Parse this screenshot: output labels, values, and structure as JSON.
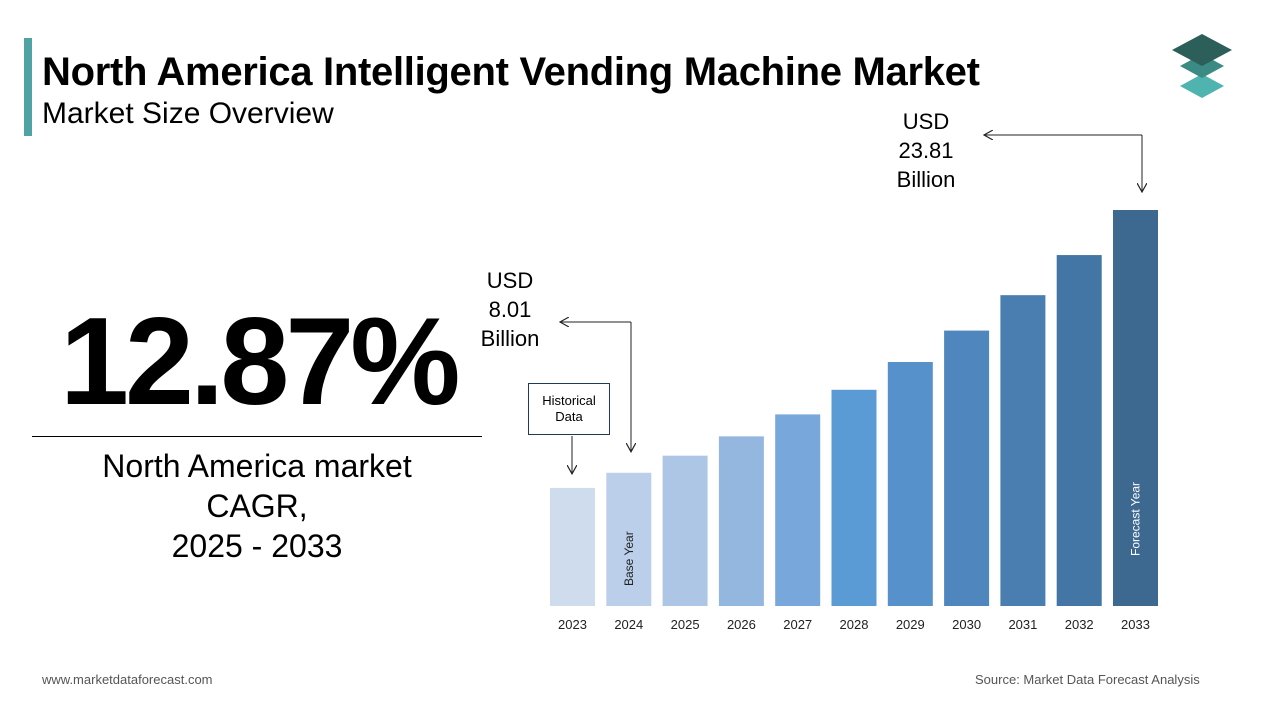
{
  "header": {
    "title": "North America Intelligent Vending Machine Market",
    "subtitle": "Market Size Overview"
  },
  "colors": {
    "accent": "#4fa3a5",
    "logo_top": "#2c5e5a",
    "logo_mid": "#3b8a84",
    "logo_bottom": "#4fb3b0",
    "bar_colors": [
      "#cfdcee",
      "#bccfea",
      "#aec6e6",
      "#94b7e0",
      "#78a7dc",
      "#5b9bd5",
      "#5691cb",
      "#4f86bd",
      "#4a7eb1",
      "#4375a5",
      "#3d6990"
    ]
  },
  "kpi": {
    "value": "12.87%",
    "label_lines": [
      "North America market",
      "CAGR,",
      "2025 - 2033"
    ]
  },
  "callouts": {
    "start": {
      "lines": [
        "USD",
        "8.01",
        "Billion"
      ],
      "year": "2024"
    },
    "end": {
      "lines": [
        "USD",
        "23.81",
        "Billion"
      ],
      "year": "2033"
    }
  },
  "historical_box": {
    "lines": [
      "Historical",
      "Data"
    ]
  },
  "chart_data": {
    "type": "bar",
    "categories": [
      "2023",
      "2024",
      "2025",
      "2026",
      "2027",
      "2028",
      "2029",
      "2030",
      "2031",
      "2032",
      "2033"
    ],
    "values": [
      7.1,
      8.01,
      9.04,
      10.2,
      11.52,
      13.0,
      14.67,
      16.56,
      18.69,
      21.1,
      23.81
    ],
    "bar_labels": {
      "2024": "Base Year",
      "2033": "Forecast Year"
    },
    "grid": false,
    "legend": "none"
  },
  "footer": {
    "website": "www.marketdataforecast.com",
    "source": "Source: Market Data Forecast Analysis"
  }
}
